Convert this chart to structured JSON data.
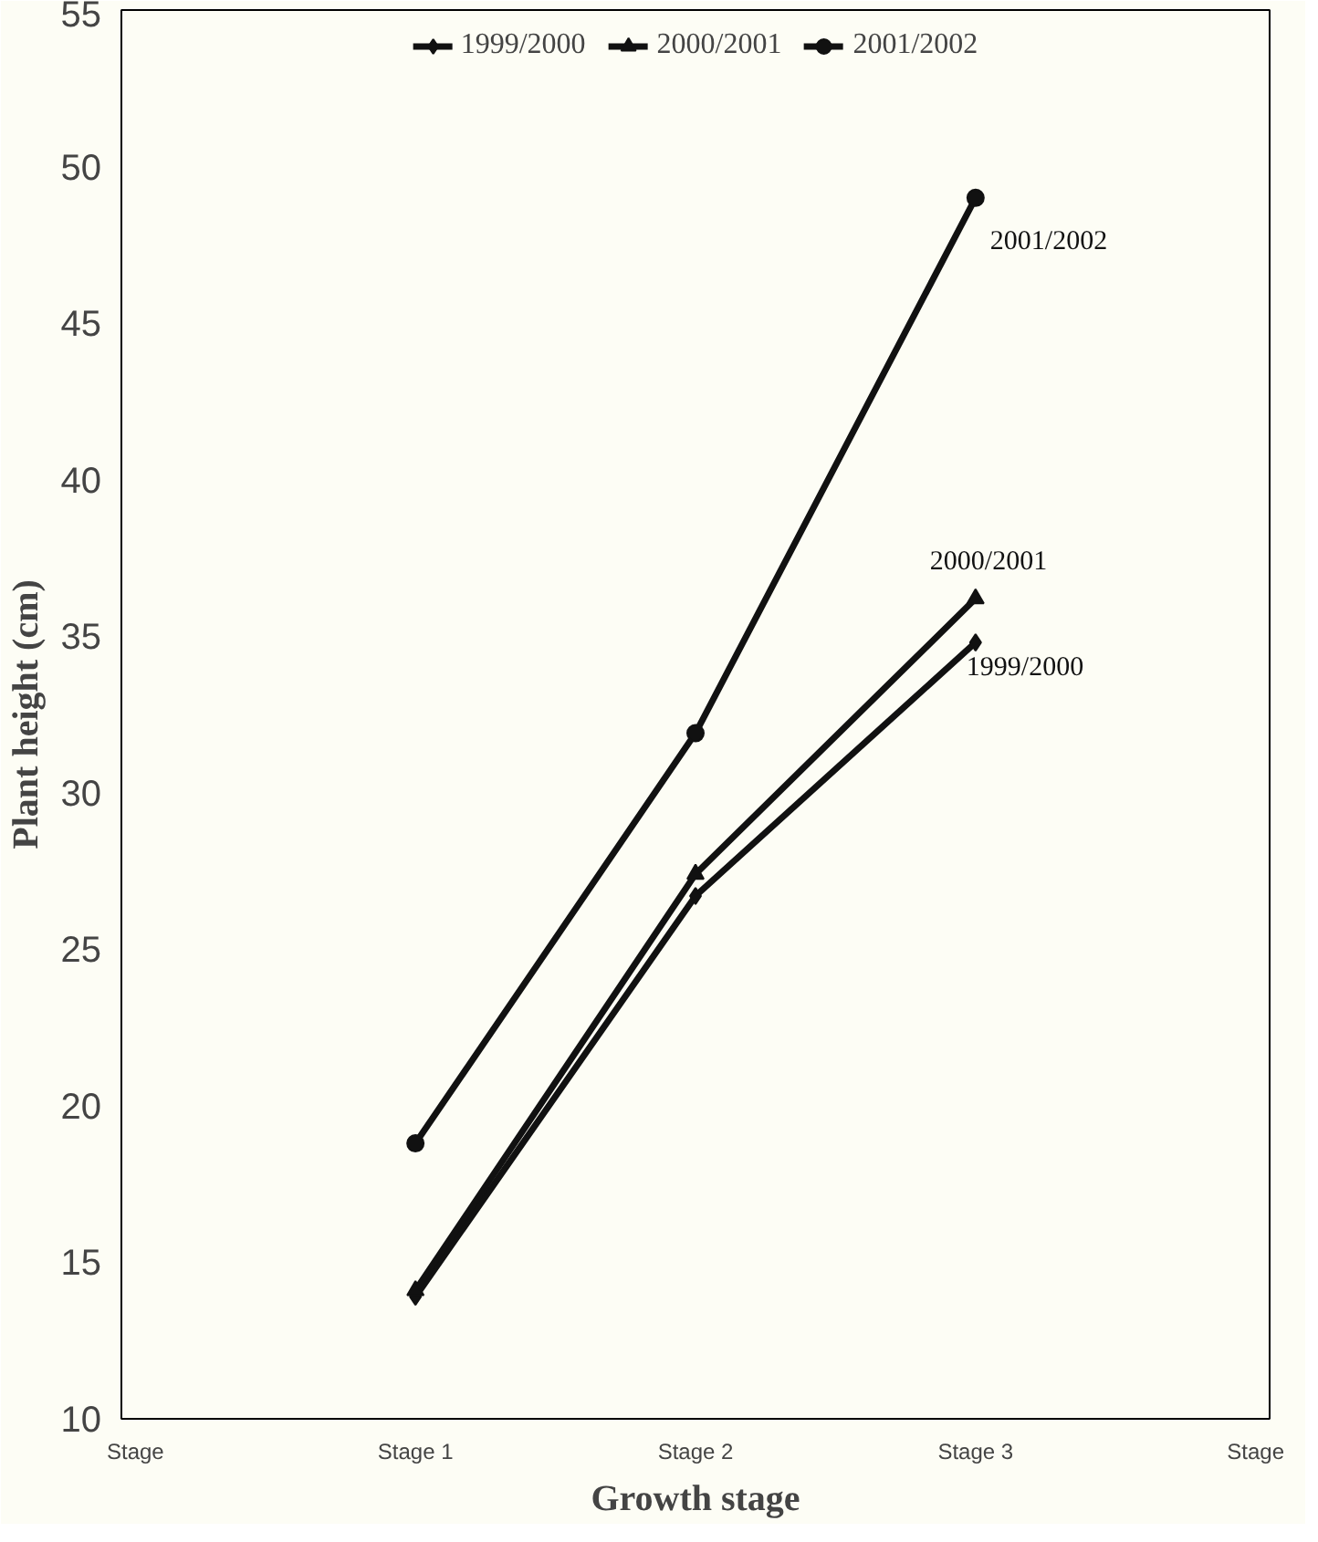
{
  "chart_data": {
    "type": "line",
    "xlabel": "Growth stage",
    "ylabel": "Plant height (cm)",
    "categories": [
      "Stage",
      "Stage 1",
      "Stage 2",
      "Stage 3",
      "Stage"
    ],
    "series": [
      {
        "name": "1999/2000",
        "color": "#111111",
        "marker": "diamond",
        "values": [
          null,
          13.9,
          26.7,
          34.8,
          null
        ]
      },
      {
        "name": "2000/2001",
        "color": "#111111",
        "marker": "triangle",
        "values": [
          null,
          14.1,
          27.4,
          36.2,
          null
        ]
      },
      {
        "name": "2001/2002",
        "color": "#111111",
        "marker": "circle",
        "values": [
          null,
          18.8,
          31.9,
          49.0,
          null
        ]
      }
    ],
    "ylim": [
      10,
      55
    ],
    "yticks": [
      10,
      15,
      20,
      25,
      30,
      35,
      40,
      45,
      50,
      55
    ],
    "grid": false,
    "legend": "top",
    "line_style": "solid"
  }
}
